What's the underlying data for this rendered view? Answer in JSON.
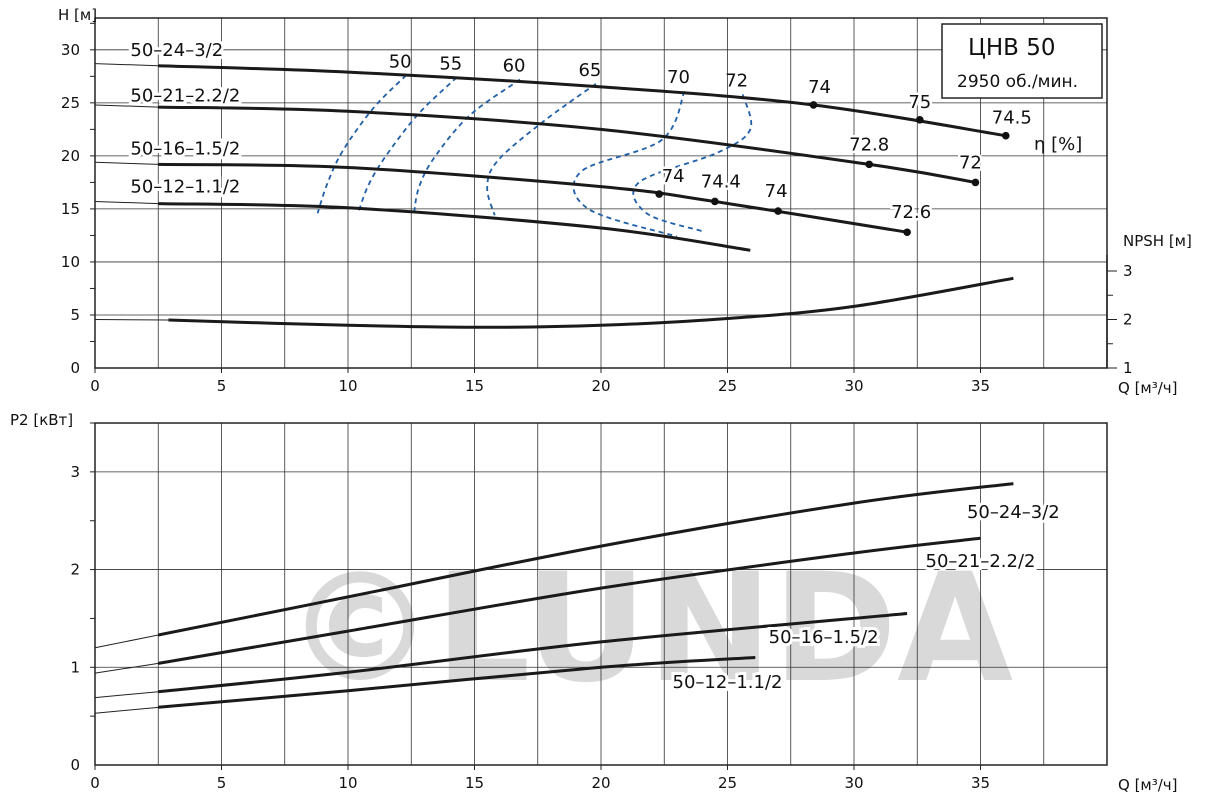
{
  "watermark": "©LUNDA",
  "chart_data": [
    {
      "type": "line",
      "title": "ЦНВ 50",
      "subtitle": "2950 об./мин.",
      "ylabel": "H [м]",
      "xlabel": "Q [м³/ч]",
      "xlim": [
        0,
        40
      ],
      "ylim": [
        0,
        33
      ],
      "x_ticks": [
        0,
        5,
        10,
        15,
        20,
        25,
        30,
        35
      ],
      "y_ticks": [
        0,
        5,
        10,
        15,
        20,
        25,
        30
      ],
      "grid": true,
      "series": [
        {
          "name": "50–24–3/2",
          "x": [
            2.5,
            10,
            20,
            28.4,
            36
          ],
          "y": [
            28.5,
            27.9,
            26.5,
            24.8,
            21.9
          ]
        },
        {
          "name": "50–21–2.2/2",
          "x": [
            2.5,
            10,
            20,
            30.6,
            34.8
          ],
          "y": [
            24.6,
            24.2,
            22.5,
            19.2,
            17.5
          ]
        },
        {
          "name": "50–16–1.5/2",
          "x": [
            2.5,
            10,
            20,
            24.5,
            32.1
          ],
          "y": [
            19.2,
            18.9,
            17.1,
            15.7,
            12.8
          ]
        },
        {
          "name": "50–12–1.1/2",
          "x": [
            2.5,
            10,
            20,
            25.9
          ],
          "y": [
            15.5,
            15.1,
            13.2,
            11.1
          ]
        }
      ],
      "points": [
        {
          "x": 28.4,
          "y": 24.8,
          "label": "74"
        },
        {
          "x": 32.6,
          "y": 23.4,
          "label": "75"
        },
        {
          "x": 36.0,
          "y": 21.9,
          "label": "74.5"
        },
        {
          "x": 30.6,
          "y": 19.2,
          "label": "72.8"
        },
        {
          "x": 34.8,
          "y": 17.5,
          "label": "72"
        },
        {
          "x": 22.3,
          "y": 16.4,
          "label": "74"
        },
        {
          "x": 24.5,
          "y": 15.7,
          "label": "74.4"
        },
        {
          "x": 27.0,
          "y": 14.8,
          "label": "74"
        },
        {
          "x": 32.1,
          "y": 12.8,
          "label": "72.6"
        }
      ],
      "efficiency_label": "η [%]",
      "efficiency_contours": [
        {
          "label": "50",
          "x": [
            12.3,
            11.0,
            9.8,
            9.2,
            8.8
          ],
          "y": [
            27.6,
            24.5,
            20.5,
            17.5,
            14.6
          ]
        },
        {
          "label": "55",
          "x": [
            14.3,
            12.8,
            11.5,
            10.8,
            10.4
          ],
          "y": [
            27.4,
            24.0,
            20.0,
            17.2,
            14.6
          ]
        },
        {
          "label": "60",
          "x": [
            16.8,
            14.8,
            13.4,
            12.8,
            12.6
          ],
          "y": [
            27.2,
            23.8,
            19.8,
            17.0,
            14.4
          ]
        },
        {
          "label": "65",
          "x": [
            19.8,
            17.7,
            15.9,
            15.5,
            15.8
          ],
          "y": [
            26.8,
            23.2,
            19.5,
            17.0,
            14.4
          ]
        },
        {
          "label": "70",
          "x": [
            23.3,
            22.4,
            19.2,
            19.5,
            23.0
          ],
          "y": [
            26.1,
            21.5,
            18.5,
            15.0,
            12.4
          ]
        },
        {
          "label": "72",
          "x": [
            25.6,
            25.9,
            24.6,
            21.5,
            21.8,
            24.0
          ],
          "y": [
            25.8,
            22.5,
            20.3,
            17.5,
            14.6,
            12.9
          ]
        }
      ],
      "npsh": {
        "label": "NPSH [м]",
        "ticks": [
          1,
          2,
          3
        ],
        "x": [
          2.9,
          10,
          15.5,
          20,
          25,
          30,
          36.3
        ],
        "y": [
          1.99,
          1.88,
          1.84,
          1.88,
          2.02,
          2.27,
          2.85
        ]
      }
    },
    {
      "type": "line",
      "ylabel": "P2 [кВт]",
      "xlabel": "Q [м³/ч]",
      "xlim": [
        0,
        40
      ],
      "ylim": [
        0,
        3.5
      ],
      "x_ticks": [
        0,
        5,
        10,
        15,
        20,
        25,
        30,
        35
      ],
      "y_ticks": [
        0,
        1,
        2,
        3
      ],
      "grid": true,
      "series": [
        {
          "name": "50–24–3/2",
          "x": [
            0,
            2.5,
            10,
            20,
            30,
            36.3
          ],
          "y": [
            1.2,
            1.33,
            1.72,
            2.24,
            2.68,
            2.88
          ]
        },
        {
          "name": "50–21–2.2/2",
          "x": [
            0,
            2.5,
            10,
            20,
            30,
            35
          ],
          "y": [
            0.94,
            1.04,
            1.37,
            1.81,
            2.17,
            2.32
          ]
        },
        {
          "name": "50–16–1.5/2",
          "x": [
            0,
            2.5,
            10,
            20,
            32.1
          ],
          "y": [
            0.69,
            0.75,
            0.95,
            1.26,
            1.55
          ]
        },
        {
          "name": "50–12–1.1/2",
          "x": [
            0,
            2.5,
            10,
            20,
            26.1
          ],
          "y": [
            0.53,
            0.59,
            0.76,
            1.0,
            1.1
          ]
        }
      ]
    }
  ]
}
